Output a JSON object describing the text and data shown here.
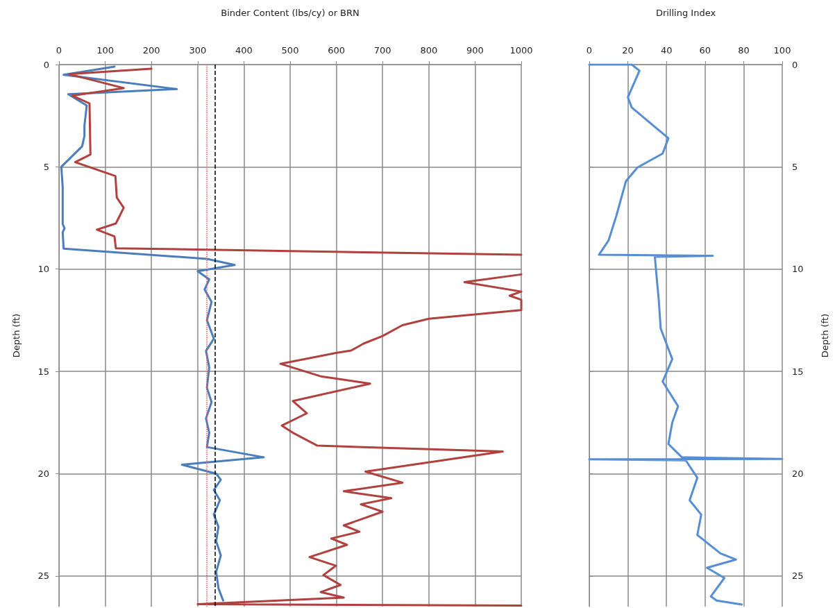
{
  "chart_data": [
    {
      "type": "line",
      "xlabel": "Binder Content (lbs/cy) or BRN",
      "ylabel": "Depth (ft)",
      "xlim": [
        0,
        1000
      ],
      "xticks": [
        0,
        100,
        200,
        300,
        400,
        500,
        600,
        700,
        800,
        900,
        1000
      ],
      "ylim": [
        26.5,
        0
      ],
      "yticks": [
        0,
        5,
        10,
        15,
        20,
        25
      ],
      "grid": true,
      "ref_lines": [
        {
          "axis": "x",
          "value": 320,
          "color": "#ff5050",
          "line_style": "dotted"
        },
        {
          "axis": "x",
          "value": 337,
          "color": "#000000",
          "line_style": "dashed"
        }
      ],
      "series": [
        {
          "color": "#4a7ebb",
          "x": [
            120,
            10,
            255,
            20,
            60,
            55,
            55,
            50,
            5,
            8,
            8,
            12,
            8,
            10,
            320,
            380,
            300,
            325,
            315,
            330,
            320,
            335,
            318,
            325,
            320,
            330,
            318,
            325,
            320,
            443,
            266,
            340,
            350,
            335,
            348,
            335,
            345,
            340,
            350,
            340,
            345,
            355
          ],
          "values": [
            0.1,
            0.5,
            1.2,
            1.45,
            2,
            3,
            3.5,
            4,
            5,
            6,
            7.8,
            8,
            8.2,
            9,
            9.5,
            9.8,
            10.1,
            10.5,
            11,
            11.6,
            12.5,
            13.4,
            14,
            14.8,
            15.8,
            16.5,
            17.3,
            18,
            18.7,
            19.2,
            19.56,
            20,
            20.3,
            20.8,
            21.3,
            22,
            22.6,
            23.3,
            24,
            24.8,
            25.6,
            26.2
          ]
        },
        {
          "color": "#b0413e",
          "x": [
            200,
            22,
            140,
            29,
            66,
            68,
            35,
            122,
            125,
            140,
            123,
            82,
            120,
            123,
            1000,
            null,
            1000,
            877,
            1000,
            975,
            1000,
            1000,
            800,
            743,
            700,
            659,
            632,
            599,
            479,
            566,
            673,
            506,
            536,
            482,
            509,
            559,
            960,
            663,
            743,
            616,
            719,
            653,
            700,
            616,
            650,
            589,
            623,
            542,
            599,
            572,
            609,
            566,
            616,
            300,
            1000
          ],
          "values": [
            0.2,
            0.47,
            1.15,
            1.52,
            1.9,
            4.4,
            4.77,
            5.45,
            6.5,
            7,
            7.77,
            8.07,
            8.4,
            8.98,
            9.3,
            null,
            10.26,
            10.64,
            11.1,
            11.3,
            11.5,
            12,
            12.43,
            12.74,
            13.27,
            13.64,
            13.98,
            14.1,
            14.63,
            15.24,
            15.6,
            16.45,
            17.05,
            17.65,
            18.04,
            18.63,
            18.92,
            19.9,
            20.44,
            20.86,
            21.2,
            21.5,
            21.86,
            22.53,
            22.84,
            23.17,
            23.48,
            24.08,
            24.5,
            24.96,
            25.44,
            25.79,
            26.06,
            26.38,
            26.45
          ]
        }
      ]
    },
    {
      "type": "line",
      "xlabel": "Drilling Index",
      "ylabel": "Depth (ft)",
      "xlim": [
        0,
        100
      ],
      "xticks": [
        0,
        20,
        40,
        60,
        80,
        100
      ],
      "ylim": [
        26.5,
        0
      ],
      "yticks": [
        0,
        5,
        10,
        15,
        20,
        25
      ],
      "grid": true,
      "series": [
        {
          "color": "#558ed5",
          "x": [
            0,
            22,
            26,
            20,
            22,
            41,
            38,
            25,
            19,
            14,
            10,
            5,
            64,
            34,
            35,
            36,
            37,
            43,
            38,
            46,
            43,
            41,
            48,
            100,
            0,
            50,
            56,
            52,
            58,
            56,
            68,
            76,
            61,
            70,
            63,
            66,
            79
          ],
          "values": [
            0,
            0,
            0.3,
            1.6,
            2.1,
            3.6,
            4.35,
            5.03,
            5.7,
            7.4,
            8.6,
            9.3,
            9.35,
            9.4,
            10.5,
            11.5,
            12.9,
            14.4,
            15.5,
            16.7,
            17.5,
            18.55,
            19.2,
            19.28,
            19.3,
            19.35,
            20.2,
            21.3,
            22,
            23,
            23.9,
            24.2,
            24.6,
            25.1,
            26,
            26.2,
            26.4
          ]
        }
      ]
    }
  ]
}
